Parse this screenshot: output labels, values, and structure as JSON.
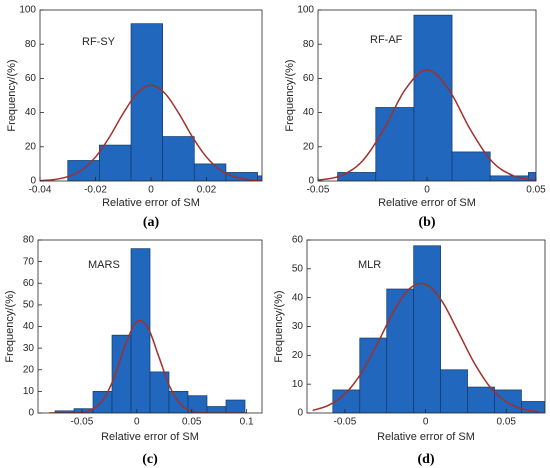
{
  "chart_data": [
    {
      "type": "histogram",
      "annotation": "RF-SY",
      "xlabel": "Relative error of SM",
      "ylabel": "Frequency/(%)",
      "caption": "(a)",
      "color": "#2067bd",
      "edgecolor": "#123a6a",
      "bins": [
        -0.03,
        -0.0186,
        -0.0072,
        0.0042,
        0.0156,
        0.027,
        0.0384,
        0.0498
      ],
      "counts": [
        12,
        21,
        92,
        26,
        10,
        5,
        3
      ],
      "fit": {
        "color": "#a2302a",
        "x": [
          -0.04,
          -0.035,
          -0.03,
          -0.025,
          -0.02,
          -0.015,
          -0.01,
          -0.005,
          0,
          0.005,
          0.01,
          0.015,
          0.02,
          0.025,
          0.03,
          0.035,
          0.04
        ],
        "values": [
          0.2,
          0.8,
          2.5,
          6.4,
          14,
          25.6,
          39.6,
          51.3,
          56,
          51.3,
          39.6,
          25.6,
          14,
          6.4,
          2.5,
          0.8,
          0.2
        ]
      },
      "xlim": [
        -0.04,
        0.04
      ],
      "xticks": [
        -0.04,
        -0.02,
        0,
        0.02
      ],
      "ylim": [
        0,
        100
      ],
      "yticks": [
        0,
        20,
        40,
        60,
        80,
        100
      ]
    },
    {
      "type": "histogram",
      "annotation": "RF-AF",
      "xlabel": "Relative error of SM",
      "ylabel": "Frequency/(%)",
      "caption": "(b)",
      "color": "#2067bd",
      "edgecolor": "#123a6a",
      "bins": [
        -0.041,
        -0.0235,
        -0.006,
        0.0115,
        0.029,
        0.0465,
        0.064
      ],
      "counts": [
        5,
        43,
        97,
        17,
        3,
        5
      ],
      "fit": {
        "color": "#a2302a",
        "x": [
          -0.05,
          -0.04,
          -0.03,
          -0.02,
          -0.01,
          0,
          0.01,
          0.02,
          0.03,
          0.04,
          0.05
        ],
        "values": [
          0.5,
          2.9,
          11.2,
          29.8,
          53.5,
          65,
          53.5,
          29.8,
          11.2,
          2.9,
          0.5
        ]
      },
      "xlim": [
        -0.05,
        0.05
      ],
      "xticks": [
        -0.05,
        0,
        0.05
      ],
      "ylim": [
        0,
        100
      ],
      "yticks": [
        0,
        20,
        40,
        60,
        80,
        100
      ]
    },
    {
      "type": "histogram",
      "annotation": "MARS",
      "xlabel": "Relative error of SM",
      "ylabel": "Frequency/(%)",
      "caption": "(c)",
      "color": "#2067bd",
      "edgecolor": "#123a6a",
      "bins": [
        -0.0745,
        -0.0572,
        -0.0399,
        -0.0226,
        -0.0053,
        0.012,
        0.0293,
        0.0466,
        0.0639,
        0.0812,
        0.0985
      ],
      "counts": [
        1,
        2,
        10,
        36,
        76,
        19,
        10,
        8,
        3,
        6
      ],
      "fit": {
        "color": "#a2302a",
        "x": [
          -0.08,
          -0.07,
          -0.06,
          -0.05,
          -0.04,
          -0.03,
          -0.02,
          -0.01,
          0,
          0.01,
          0.02,
          0.03,
          0.04,
          0.05,
          0.06,
          0.07,
          0.08,
          0.09,
          0.1
        ],
        "values": [
          0,
          0,
          0,
          0.3,
          1.8,
          6.6,
          17.2,
          32.1,
          42.3,
          39.5,
          26.1,
          12.2,
          4,
          0.9,
          0.2,
          0,
          0,
          0,
          0
        ]
      },
      "xlim": [
        -0.09,
        0.114
      ],
      "xticks": [
        -0.05,
        0,
        0.05,
        0.1
      ],
      "ylim": [
        0,
        80
      ],
      "yticks": [
        0,
        10,
        20,
        30,
        40,
        50,
        60,
        70,
        80
      ]
    },
    {
      "type": "histogram",
      "annotation": "MLR",
      "xlabel": "Relative error of SM",
      "ylabel": "Frequency/(%)",
      "caption": "(d)",
      "color": "#2067bd",
      "edgecolor": "#123a6a",
      "bins": [
        -0.0575,
        -0.0408,
        -0.0241,
        -0.0074,
        0.0093,
        0.026,
        0.0427,
        0.0594,
        0.0761
      ],
      "counts": [
        8,
        26,
        43,
        58,
        15,
        9,
        8,
        4
      ],
      "fit": {
        "color": "#a2302a",
        "x": [
          -0.07,
          -0.06,
          -0.05,
          -0.04,
          -0.03,
          -0.02,
          -0.01,
          0,
          0.01,
          0.02,
          0.03,
          0.04,
          0.05,
          0.06,
          0.07
        ],
        "values": [
          0.9,
          2.7,
          6.6,
          13.7,
          23.9,
          35,
          43.1,
          44.7,
          38.9,
          28.4,
          17.5,
          9,
          3.9,
          1.4,
          0.4
        ]
      },
      "xlim": [
        -0.0735,
        0.074
      ],
      "xticks": [
        -0.05,
        0,
        0.05
      ],
      "ylim": [
        0,
        60
      ],
      "yticks": [
        0,
        10,
        20,
        30,
        40,
        50,
        60
      ]
    }
  ]
}
